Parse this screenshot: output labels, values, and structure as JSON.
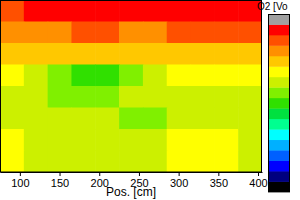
{
  "chart_data": {
    "type": "heatmap",
    "x_label": "Pos. [cm]",
    "colorbar_label": "O2 [Vo",
    "xlim": [
      75,
      405
    ],
    "xticks": [
      100,
      150,
      200,
      250,
      300,
      350,
      400
    ],
    "ylim": [
      0,
      80
    ],
    "tick_labels": "x",
    "x": [
      90,
      120,
      150,
      180,
      210,
      240,
      270,
      300,
      330,
      360,
      390
    ],
    "y": [
      75,
      65,
      55,
      45,
      35,
      25,
      15,
      5
    ],
    "z": [
      [
        17.9,
        19.1,
        19.1,
        19.1,
        19.1,
        19.1,
        19.1,
        19.1,
        19.1,
        19.1,
        19.1
      ],
      [
        16.7,
        16.7,
        16.7,
        17.9,
        17.9,
        16.7,
        16.7,
        17.9,
        17.9,
        17.9,
        17.9
      ],
      [
        15.4,
        15.4,
        15.4,
        15.4,
        15.4,
        15.4,
        15.4,
        15.4,
        15.4,
        15.4,
        15.4
      ],
      [
        14.2,
        13.0,
        11.7,
        10.5,
        10.5,
        11.7,
        13.0,
        14.2,
        14.2,
        14.2,
        14.2
      ],
      [
        13.0,
        13.0,
        11.7,
        11.7,
        11.7,
        13.0,
        13.0,
        13.0,
        13.0,
        13.0,
        13.0
      ],
      [
        13.0,
        13.0,
        13.0,
        13.0,
        13.0,
        11.7,
        11.7,
        13.0,
        13.0,
        13.0,
        13.0
      ],
      [
        14.2,
        13.0,
        13.0,
        13.0,
        13.0,
        13.0,
        13.0,
        14.2,
        14.2,
        14.2,
        13.0
      ],
      [
        14.2,
        13.0,
        13.0,
        13.0,
        13.0,
        13.0,
        13.0,
        14.2,
        14.2,
        14.2,
        13.0
      ]
    ],
    "colorbar_range": [
      0,
      21
    ]
  }
}
